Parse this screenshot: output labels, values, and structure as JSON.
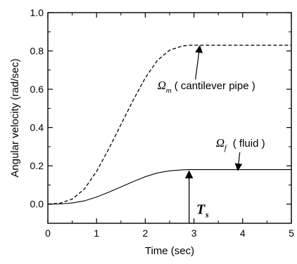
{
  "chart_data": {
    "type": "line",
    "xlabel": "Time (sec)",
    "ylabel": "Angular velocity (rad/sec)",
    "xlim": [
      0,
      5
    ],
    "ylim": [
      -0.1,
      1.0
    ],
    "xticks": [
      0,
      1,
      2,
      3,
      4,
      5
    ],
    "yticks": [
      0.0,
      0.2,
      0.4,
      0.6,
      0.8,
      1.0
    ],
    "ytick_labels": [
      "0.0",
      "0.2",
      "0.4",
      "0.6",
      "0.8",
      "1.0"
    ],
    "grid": false,
    "series": [
      {
        "id": "cantilever",
        "style": "dashed",
        "x": [
          0,
          0.25,
          0.5,
          0.75,
          1.0,
          1.25,
          1.5,
          1.75,
          2.0,
          2.25,
          2.5,
          2.75,
          2.9,
          3.25,
          3.5,
          4.0,
          4.5,
          5.0
        ],
        "y": [
          0,
          0.005,
          0.026,
          0.079,
          0.171,
          0.288,
          0.415,
          0.542,
          0.659,
          0.751,
          0.804,
          0.825,
          0.83,
          0.83,
          0.83,
          0.83,
          0.83,
          0.83
        ]
      },
      {
        "id": "fluid",
        "style": "solid",
        "x": [
          0,
          0.25,
          0.5,
          0.75,
          1.0,
          1.25,
          1.5,
          1.75,
          2.0,
          2.25,
          2.5,
          2.75,
          2.9,
          3.25,
          3.5,
          4.0,
          4.5,
          5.0
        ],
        "y": [
          0,
          0.001,
          0.006,
          0.017,
          0.037,
          0.062,
          0.09,
          0.117,
          0.143,
          0.163,
          0.174,
          0.179,
          0.18,
          0.18,
          0.18,
          0.18,
          0.18,
          0.18
        ]
      }
    ],
    "annotations": [
      {
        "id": "cantilever",
        "symbol": "Ω",
        "subscript": "m",
        "text": "( cantilever pipe )",
        "label_at": [
          2.25,
          0.6
        ],
        "arrow_to": [
          3.12,
          0.83
        ]
      },
      {
        "id": "fluid",
        "symbol": "Ω",
        "subscript": "f",
        "text": "( fluid )",
        "label_at": [
          3.45,
          0.3
        ],
        "arrow_to": [
          3.9,
          0.18
        ]
      },
      {
        "id": "ts",
        "symbol": "T",
        "subscript": "s",
        "marker_x": 2.9,
        "label_at": [
          3.05,
          -0.05
        ]
      }
    ]
  }
}
